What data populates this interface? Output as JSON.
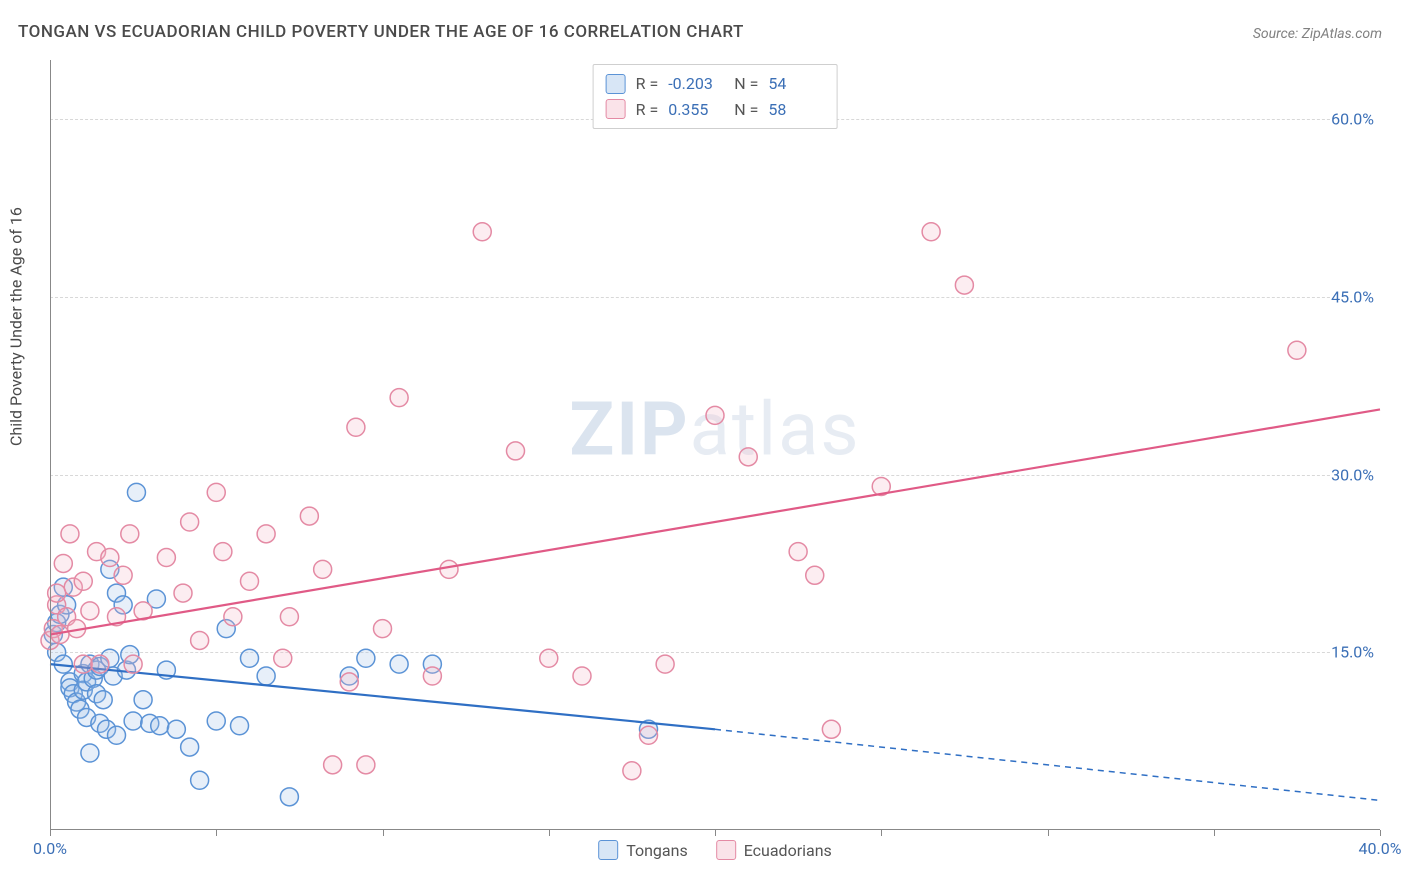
{
  "title": "TONGAN VS ECUADORIAN CHILD POVERTY UNDER THE AGE OF 16 CORRELATION CHART",
  "source_prefix": "Source: ",
  "source_name": "ZipAtlas.com",
  "ylabel": "Child Poverty Under the Age of 16",
  "watermark_bold": "ZIP",
  "watermark_rest": "atlas",
  "chart": {
    "type": "scatter",
    "background_color": "#ffffff",
    "grid_color": "#d8d8d8",
    "axis_color": "#888888",
    "xlim": [
      0,
      40
    ],
    "ylim": [
      0,
      65
    ],
    "xticks": [
      0,
      5,
      10,
      15,
      20,
      25,
      30,
      35,
      40
    ],
    "xtick_labels": {
      "0": "0.0%",
      "40": "40.0%"
    },
    "yticks": [
      15,
      30,
      45,
      60
    ],
    "ytick_labels": {
      "15": "15.0%",
      "30": "30.0%",
      "45": "45.0%",
      "60": "60.0%"
    },
    "marker_radius": 9,
    "marker_stroke_width": 1.5,
    "marker_fill_opacity": 0.25,
    "trend_line_width": 2.2,
    "series": [
      {
        "key": "tongans",
        "label": "Tongans",
        "color_stroke": "#5b93d6",
        "color_fill": "#9ec1e8",
        "line_color": "#2f6fc4",
        "R": "-0.203",
        "N": "54",
        "trend": {
          "x1": 0,
          "y1": 14.0,
          "x2": 20,
          "y2": 8.5,
          "dash_x2": 40,
          "dash_y2": 2.5
        },
        "points": [
          [
            0.1,
            16.5
          ],
          [
            0.2,
            17.5
          ],
          [
            0.3,
            18.2
          ],
          [
            0.2,
            15.0
          ],
          [
            0.4,
            14.0
          ],
          [
            0.4,
            20.5
          ],
          [
            0.5,
            19.0
          ],
          [
            0.6,
            12.5
          ],
          [
            0.6,
            12.0
          ],
          [
            0.7,
            11.5
          ],
          [
            0.8,
            10.8
          ],
          [
            0.9,
            10.2
          ],
          [
            1.0,
            13.2
          ],
          [
            1.0,
            11.8
          ],
          [
            1.1,
            9.5
          ],
          [
            1.1,
            12.5
          ],
          [
            1.2,
            6.5
          ],
          [
            1.2,
            14.0
          ],
          [
            1.3,
            12.8
          ],
          [
            1.4,
            13.5
          ],
          [
            1.4,
            11.5
          ],
          [
            1.5,
            9.0
          ],
          [
            1.5,
            13.8
          ],
          [
            1.6,
            11.0
          ],
          [
            1.7,
            8.5
          ],
          [
            1.8,
            14.5
          ],
          [
            1.8,
            22.0
          ],
          [
            1.9,
            13.0
          ],
          [
            2.0,
            20.0
          ],
          [
            2.0,
            8.0
          ],
          [
            2.2,
            19.0
          ],
          [
            2.3,
            13.5
          ],
          [
            2.4,
            14.8
          ],
          [
            2.5,
            9.2
          ],
          [
            2.6,
            28.5
          ],
          [
            2.8,
            11.0
          ],
          [
            3.0,
            9.0
          ],
          [
            3.2,
            19.5
          ],
          [
            3.3,
            8.8
          ],
          [
            3.5,
            13.5
          ],
          [
            3.8,
            8.5
          ],
          [
            4.2,
            7.0
          ],
          [
            4.5,
            4.2
          ],
          [
            5.0,
            9.2
          ],
          [
            5.3,
            17.0
          ],
          [
            5.7,
            8.8
          ],
          [
            6.0,
            14.5
          ],
          [
            6.5,
            13.0
          ],
          [
            7.2,
            2.8
          ],
          [
            9.0,
            13.0
          ],
          [
            9.5,
            14.5
          ],
          [
            10.5,
            14.0
          ],
          [
            11.5,
            14.0
          ],
          [
            18.0,
            8.5
          ]
        ]
      },
      {
        "key": "ecuadorians",
        "label": "Ecuadorians",
        "color_stroke": "#e48aa4",
        "color_fill": "#f3b9c9",
        "line_color": "#e05a86",
        "R": "0.355",
        "N": "58",
        "trend": {
          "x1": 0,
          "y1": 16.5,
          "x2": 40,
          "y2": 35.5
        },
        "points": [
          [
            0.0,
            16.0
          ],
          [
            0.1,
            17.0
          ],
          [
            0.2,
            19.0
          ],
          [
            0.2,
            20.0
          ],
          [
            0.3,
            16.5
          ],
          [
            0.4,
            22.5
          ],
          [
            0.5,
            18.0
          ],
          [
            0.6,
            25.0
          ],
          [
            0.7,
            20.5
          ],
          [
            0.8,
            17.0
          ],
          [
            1.0,
            14.0
          ],
          [
            1.0,
            21.0
          ],
          [
            1.2,
            18.5
          ],
          [
            1.4,
            23.5
          ],
          [
            1.5,
            14.0
          ],
          [
            1.8,
            23.0
          ],
          [
            2.0,
            18.0
          ],
          [
            2.2,
            21.5
          ],
          [
            2.4,
            25.0
          ],
          [
            2.5,
            14.0
          ],
          [
            2.8,
            18.5
          ],
          [
            3.5,
            23.0
          ],
          [
            4.0,
            20.0
          ],
          [
            4.2,
            26.0
          ],
          [
            4.5,
            16.0
          ],
          [
            5.0,
            28.5
          ],
          [
            5.2,
            23.5
          ],
          [
            5.5,
            18.0
          ],
          [
            6.0,
            21.0
          ],
          [
            6.5,
            25.0
          ],
          [
            7.0,
            14.5
          ],
          [
            7.2,
            18.0
          ],
          [
            7.8,
            26.5
          ],
          [
            8.2,
            22.0
          ],
          [
            8.5,
            5.5
          ],
          [
            9.0,
            12.5
          ],
          [
            9.2,
            34.0
          ],
          [
            9.5,
            5.5
          ],
          [
            10.0,
            17.0
          ],
          [
            10.5,
            36.5
          ],
          [
            11.5,
            13.0
          ],
          [
            12.0,
            22.0
          ],
          [
            13.0,
            50.5
          ],
          [
            14.0,
            32.0
          ],
          [
            15.0,
            14.5
          ],
          [
            16.0,
            13.0
          ],
          [
            17.5,
            5.0
          ],
          [
            18.0,
            8.0
          ],
          [
            18.5,
            14.0
          ],
          [
            20.0,
            35.0
          ],
          [
            21.0,
            31.5
          ],
          [
            22.5,
            23.5
          ],
          [
            23.0,
            21.5
          ],
          [
            23.5,
            8.5
          ],
          [
            25.0,
            29.0
          ],
          [
            26.5,
            50.5
          ],
          [
            27.5,
            46.0
          ],
          [
            37.5,
            40.5
          ]
        ]
      }
    ]
  },
  "legend_top_labels": {
    "R": "R =",
    "N": "N ="
  },
  "colors": {
    "title": "#4a4a4a",
    "source": "#808080",
    "tick_label": "#3b6fb6"
  }
}
